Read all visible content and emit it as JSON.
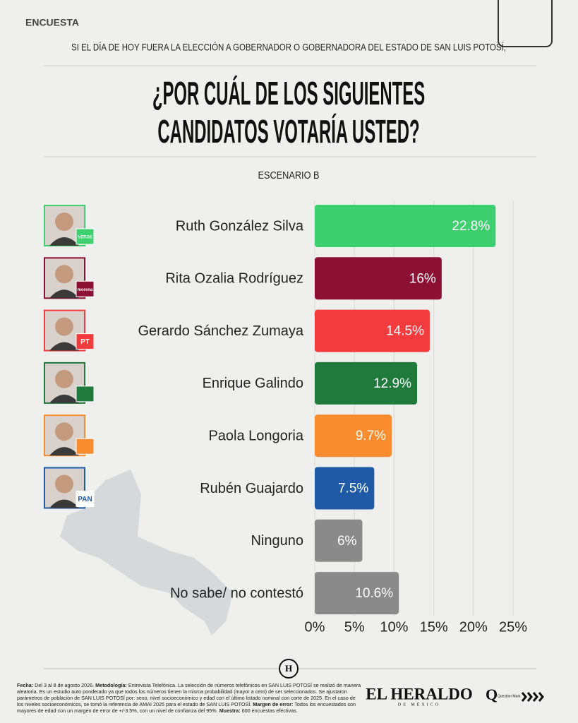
{
  "header": {
    "kicker": "ENCUESTA",
    "question_intro": "SI EL DÍA DE HOY FUERA LA ELECCIÓN A GOBERNADOR O GOBERNADORA DEL ESTADO DE SAN LUIS POTOSÍ,"
  },
  "chart_data": {
    "type": "bar",
    "orientation": "horizontal",
    "title": "¿POR CUÁL DE LOS SIGUIENTES CANDIDATOS VOTARÍA USTED?",
    "subtitle": "ESCENARIO B",
    "categories": [
      "Ruth González Silva",
      "Rita Ozalia Rodríguez",
      "Gerardo Sánchez Zumaya",
      "Enrique Galindo",
      "Paola Longoria",
      "Rubén Guajardo",
      "Ninguno",
      "No sabe/ no contestó"
    ],
    "badges": [
      "VERDE",
      "morena",
      "PT",
      null,
      null,
      "PAN",
      null,
      null
    ],
    "values": [
      22.8,
      16,
      14.5,
      12.9,
      9.7,
      7.5,
      6,
      10.6
    ],
    "value_labels": [
      "22.8%",
      "16%",
      "14.5%",
      "12.9%",
      "9.7%",
      "7.5%",
      "6%",
      "10.6%"
    ],
    "colors": [
      "#3ecf6e",
      "#8b1034",
      "#f23b3c",
      "#1f7a3c",
      "#f98c2f",
      "#1f5aa6",
      "#8a8a8a",
      "#8a8a8a"
    ],
    "xlim": [
      0,
      25
    ],
    "xticks": [
      {
        "value": 0,
        "label": "0%"
      },
      {
        "value": 5,
        "label": "5%"
      },
      {
        "value": 10,
        "label": "10%"
      },
      {
        "value": 15,
        "label": "15%"
      },
      {
        "value": 20,
        "label": "20%"
      },
      {
        "value": 25,
        "label": "25%"
      }
    ],
    "grid": true
  },
  "footer": {
    "notes": [
      {
        "label": "Fecha:",
        "text": "Del 3 al 8 de agosto 2026."
      },
      {
        "label": "Metodología:",
        "text": "Entrevista Telefónica. La selección de números telefónicos en SAN LUIS POTOSÍ se realizó de manera aleatoria. Es un estudio auto ponderado ya que todos los números tienen la misma probabilidad (mayor a cero) de ser seleccionados. Se ajustaron parámetros de población de SAN LUIS POTOSÍ por: sexo, nivel socioeconómico y edad con el último listado nominal con corte de 2025. En el caso de los niveles socioeconómicos, se tomó la referencia de AMAI 2025 para el estado de SAN LUIS POTOSÍ."
      },
      {
        "label": "Margen de error:",
        "text": "Todos los encuestados son mayores de edad con un margen de error de +/-3.5%, con un nivel de confianza del 95%."
      },
      {
        "label": "Muestra:",
        "text": "600 encuestas efectivas."
      }
    ],
    "logo": "EL HERALDO",
    "logo_sub": "DE MÉXICO",
    "partner": "Question Mark",
    "seal": "H"
  }
}
